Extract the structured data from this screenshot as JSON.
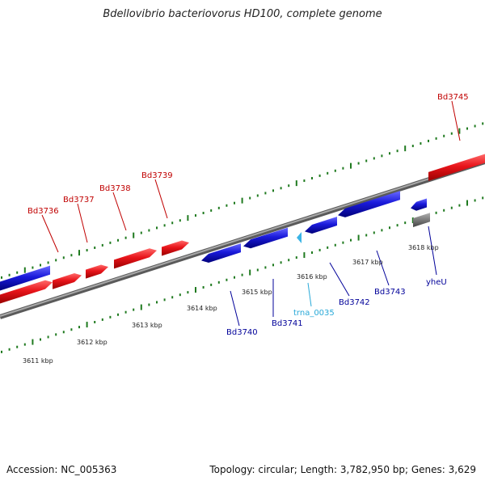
{
  "title": "Bdellovibrio bacteriovorus HD100, complete genome",
  "footer": {
    "accession": "Accession: NC_005363",
    "summary": "Topology: circular; Length: 3,782,950 bp; Genes: 3,629"
  },
  "colors": {
    "forward_gene": "#e8141a",
    "reverse_gene": "#1a1adb",
    "rna": "#3ab4e6",
    "other": "#7a7a7a",
    "tick": "#1f7a1f",
    "backbone": "#8a8a8a",
    "forward_label": "#c00000",
    "reverse_label": "#000099",
    "rna_label": "#29a9d8",
    "scale_label": "#222222"
  },
  "scale_labels": [
    "3611 kbp",
    "3612 kbp",
    "3613 kbp",
    "3614 kbp",
    "3615 kbp",
    "3616 kbp",
    "3617 kbp",
    "3618 kbp"
  ],
  "forward_labels": [
    "Bd3736",
    "Bd3737",
    "Bd3738",
    "Bd3739",
    "Bd3745"
  ],
  "reverse_labels": [
    "Bd3740",
    "Bd3741",
    "trna_0035",
    "Bd3742",
    "Bd3743",
    "yheU"
  ]
}
